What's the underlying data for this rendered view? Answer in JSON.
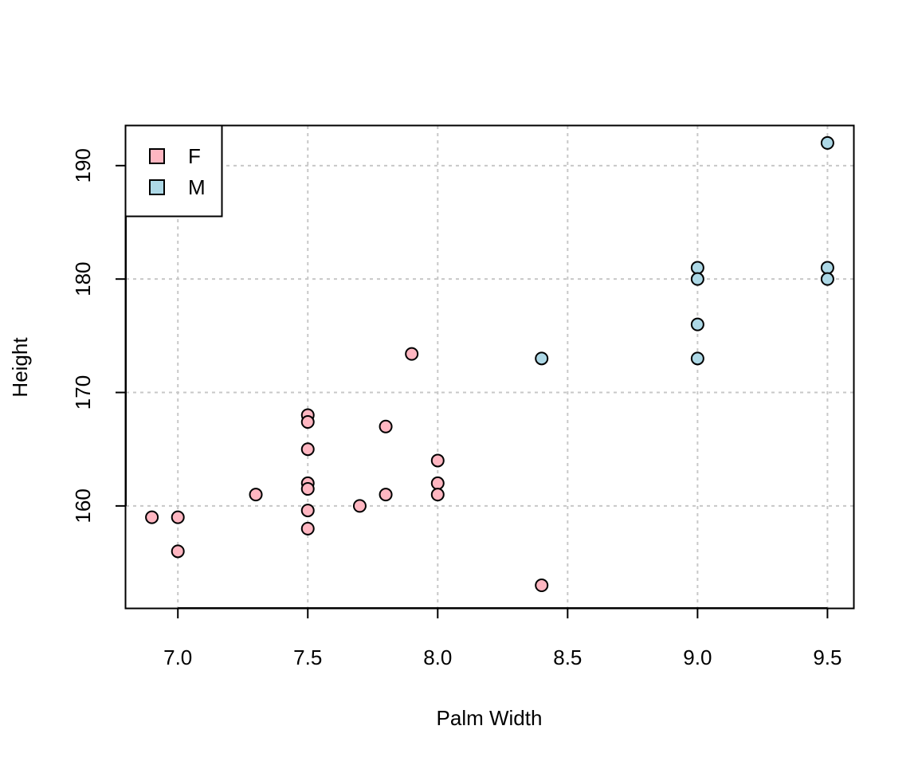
{
  "chart_data": {
    "type": "scatter",
    "title": "",
    "xlabel": "Palm Width",
    "ylabel": "Height",
    "xlim": [
      6.8,
      9.6
    ],
    "ylim": [
      151,
      193.5
    ],
    "x_ticks": [
      "7.0",
      "7.5",
      "8.0",
      "8.5",
      "9.0",
      "9.5"
    ],
    "y_ticks": [
      "160",
      "170",
      "180",
      "190"
    ],
    "grid": true,
    "legend_position": "top-left",
    "series": [
      {
        "name": "F",
        "color": "#FFB6C1",
        "points": [
          [
            6.9,
            159
          ],
          [
            7.0,
            159
          ],
          [
            7.0,
            156
          ],
          [
            7.3,
            161
          ],
          [
            7.5,
            168
          ],
          [
            7.5,
            167.4
          ],
          [
            7.5,
            165
          ],
          [
            7.5,
            162
          ],
          [
            7.5,
            161.5
          ],
          [
            7.5,
            159.6
          ],
          [
            7.5,
            158
          ],
          [
            7.7,
            160
          ],
          [
            7.8,
            167
          ],
          [
            7.8,
            161
          ],
          [
            7.9,
            173.4
          ],
          [
            8.0,
            164
          ],
          [
            8.0,
            162
          ],
          [
            8.0,
            161
          ],
          [
            8.4,
            153
          ]
        ]
      },
      {
        "name": "M",
        "color": "#ADD8E6",
        "points": [
          [
            8.4,
            173
          ],
          [
            9.0,
            181
          ],
          [
            9.0,
            180
          ],
          [
            9.0,
            176
          ],
          [
            9.0,
            173
          ],
          [
            9.5,
            192
          ],
          [
            9.5,
            181
          ],
          [
            9.5,
            180
          ]
        ]
      }
    ]
  }
}
